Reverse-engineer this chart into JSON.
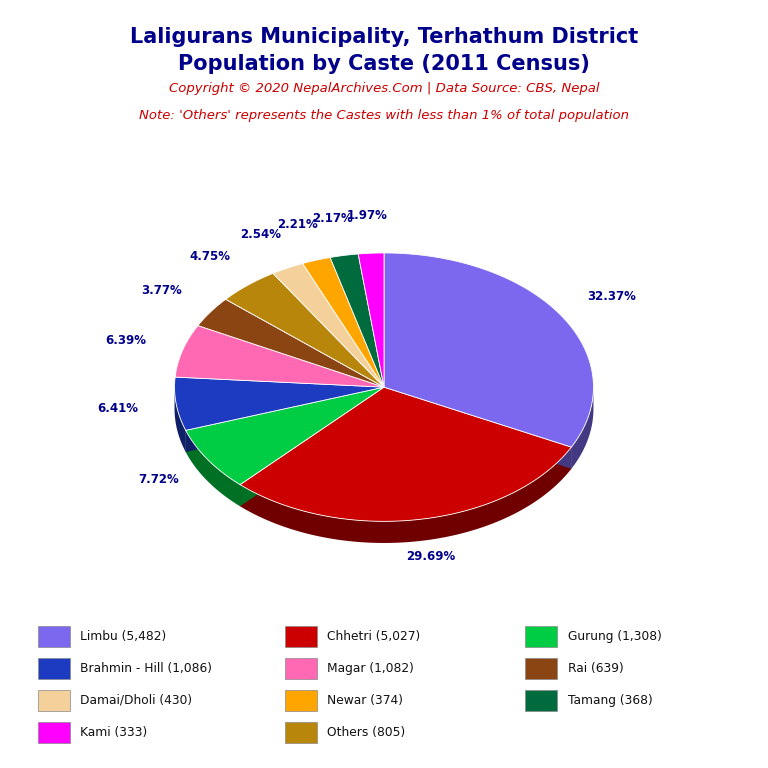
{
  "title_line1": "Laligurans Municipality, Terhathum District",
  "title_line2": "Population by Caste (2011 Census)",
  "copyright_text": "Copyright © 2020 NepalArchives.Com | Data Source: CBS, Nepal",
  "note_text": "Note: 'Others' represents the Castes with less than 1% of total population",
  "labels": [
    "Limbu",
    "Chhetri",
    "Gurung",
    "Brahmin - Hill",
    "Magar",
    "Rai",
    "Others",
    "Damai/Dholi",
    "Newar",
    "Tamang",
    "Kami"
  ],
  "values": [
    5482,
    5027,
    1308,
    1086,
    1082,
    639,
    805,
    430,
    374,
    368,
    333
  ],
  "colors": [
    "#7B68EE",
    "#CC0000",
    "#00CC44",
    "#1C3BC0",
    "#FF69B4",
    "#8B4513",
    "#B8860B",
    "#F4D09A",
    "#FFA500",
    "#006B3C",
    "#FF00FF"
  ],
  "pct_labels": [
    "32.37%",
    "29.69%",
    "7.72%",
    "6.41%",
    "6.39%",
    "3.77%",
    "4.75%",
    "2.54%",
    "2.21%",
    "2.17%",
    "1.97%"
  ],
  "title_color": "#00008B",
  "copyright_color": "#CC0000",
  "note_color": "#CC0000",
  "pct_label_color": "#00008B",
  "background_color": "#FFFFFF",
  "legend_order": [
    {
      "label": "Limbu (5,482)",
      "color": "#7B68EE"
    },
    {
      "label": "Chhetri (5,027)",
      "color": "#CC0000"
    },
    {
      "label": "Gurung (1,308)",
      "color": "#00CC44"
    },
    {
      "label": "Brahmin - Hill (1,086)",
      "color": "#1C3BC0"
    },
    {
      "label": "Magar (1,082)",
      "color": "#FF69B4"
    },
    {
      "label": "Rai (639)",
      "color": "#8B4513"
    },
    {
      "label": "Damai/Dholi (430)",
      "color": "#F4D09A"
    },
    {
      "label": "Newar (374)",
      "color": "#FFA500"
    },
    {
      "label": "Tamang (368)",
      "color": "#006B3C"
    },
    {
      "label": "Kami (333)",
      "color": "#FF00FF"
    },
    {
      "label": "Others (805)",
      "color": "#B8860B"
    }
  ]
}
